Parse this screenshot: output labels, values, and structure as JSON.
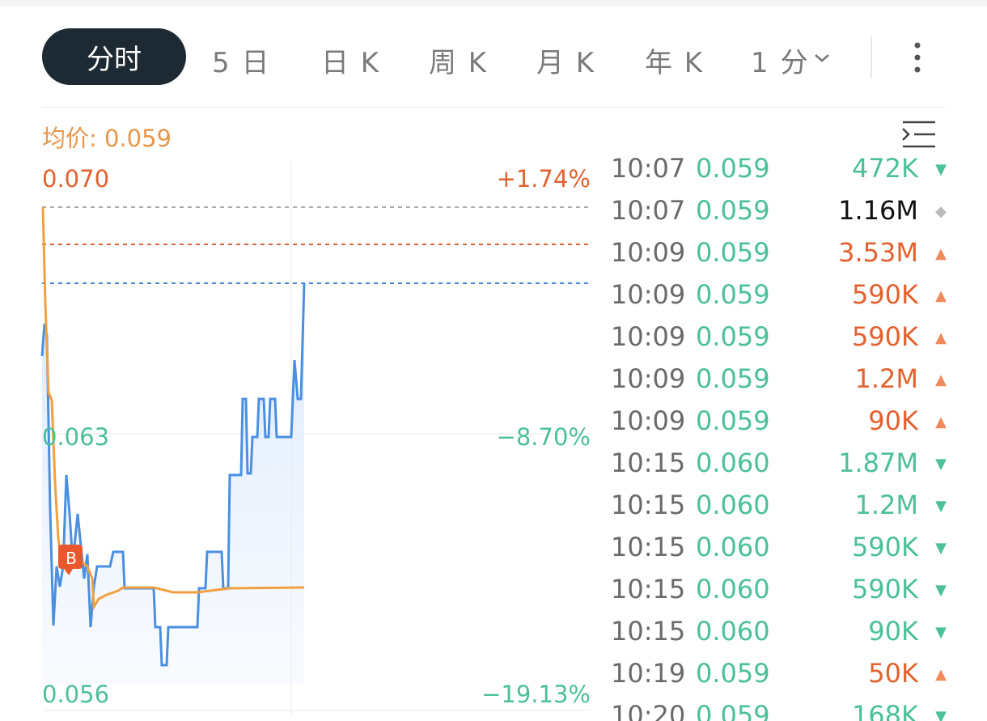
{
  "tabs": [
    "分时",
    "5 日",
    "日 K",
    "周 K",
    "月 K",
    "年 K",
    "1 分"
  ],
  "avg_label": "均价: 0.059",
  "axis": {
    "top": "0.070",
    "mid": "0.063",
    "bottom": "0.056",
    "top_pct": "+1.74%",
    "mid_pct": "−8.70%",
    "bottom_pct": "−19.13%"
  },
  "marker": "B",
  "trades": [
    {
      "time": "10:07",
      "price": "0.059",
      "volume": "472K",
      "arrow": "▼",
      "color": "#4cbf9b",
      "arrow_color": "#4cbf9b"
    },
    {
      "time": "10:07",
      "price": "0.059",
      "volume": "1.16M",
      "arrow": "◆",
      "color": "#111111",
      "arrow_color": "#bbbbbb"
    },
    {
      "time": "10:09",
      "price": "0.059",
      "volume": "3.53M",
      "arrow": "▲",
      "color": "#e2612f",
      "arrow_color": "#f08a5d"
    },
    {
      "time": "10:09",
      "price": "0.059",
      "volume": "590K",
      "arrow": "▲",
      "color": "#e2612f",
      "arrow_color": "#f08a5d"
    },
    {
      "time": "10:09",
      "price": "0.059",
      "volume": "590K",
      "arrow": "▲",
      "color": "#e2612f",
      "arrow_color": "#f08a5d"
    },
    {
      "time": "10:09",
      "price": "0.059",
      "volume": "1.2M",
      "arrow": "▲",
      "color": "#e2612f",
      "arrow_color": "#f08a5d"
    },
    {
      "time": "10:09",
      "price": "0.059",
      "volume": "90K",
      "arrow": "▲",
      "color": "#e2612f",
      "arrow_color": "#f08a5d"
    },
    {
      "time": "10:15",
      "price": "0.060",
      "volume": "1.87M",
      "arrow": "▼",
      "color": "#4cbf9b",
      "arrow_color": "#4cbf9b"
    },
    {
      "time": "10:15",
      "price": "0.060",
      "volume": "1.2M",
      "arrow": "▼",
      "color": "#4cbf9b",
      "arrow_color": "#4cbf9b"
    },
    {
      "time": "10:15",
      "price": "0.060",
      "volume": "590K",
      "arrow": "▼",
      "color": "#4cbf9b",
      "arrow_color": "#4cbf9b"
    },
    {
      "time": "10:15",
      "price": "0.060",
      "volume": "590K",
      "arrow": "▼",
      "color": "#4cbf9b",
      "arrow_color": "#4cbf9b"
    },
    {
      "time": "10:15",
      "price": "0.060",
      "volume": "90K",
      "arrow": "▼",
      "color": "#4cbf9b",
      "arrow_color": "#4cbf9b"
    },
    {
      "time": "10:19",
      "price": "0.059",
      "volume": "50K",
      "arrow": "▲",
      "color": "#e2612f",
      "arrow_color": "#f08a5d"
    },
    {
      "time": "10:20",
      "price": "0.059",
      "volume": "168K",
      "arrow": "▼",
      "color": "#4cbf9b",
      "arrow_color": "#4cbf9b"
    }
  ]
}
